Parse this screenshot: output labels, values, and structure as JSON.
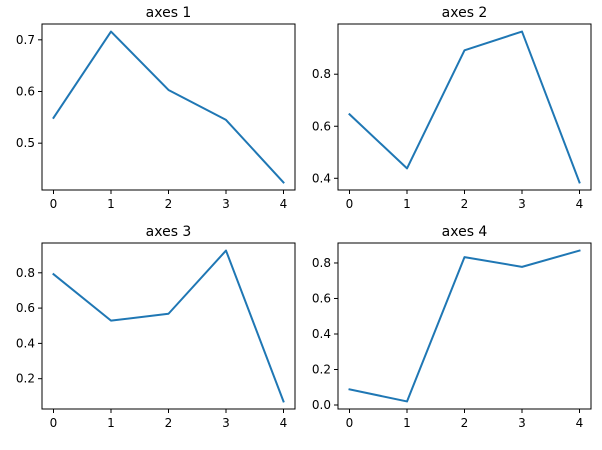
{
  "chart_data": [
    {
      "type": "line",
      "title": "axes 1",
      "x": [
        0,
        1,
        2,
        3,
        4
      ],
      "series": [
        {
          "values": [
            0.549,
            0.716,
            0.603,
            0.545,
            0.424
          ]
        }
      ],
      "xticks": [
        0,
        1,
        2,
        3,
        4
      ],
      "yticks": [
        0.5,
        0.6,
        0.7
      ],
      "xlim": [
        -0.2,
        4.2
      ],
      "ylim": [
        0.4094,
        0.7306
      ],
      "grid": false,
      "color": "#1f77b4"
    },
    {
      "type": "line",
      "title": "axes 2",
      "x": [
        0,
        1,
        2,
        3,
        4
      ],
      "series": [
        {
          "values": [
            0.646,
            0.438,
            0.892,
            0.964,
            0.384
          ]
        }
      ],
      "xticks": [
        0,
        1,
        2,
        3,
        4
      ],
      "yticks": [
        0.4,
        0.6,
        0.8
      ],
      "xlim": [
        -0.2,
        4.2
      ],
      "ylim": [
        0.355,
        0.993
      ],
      "grid": false,
      "color": "#1f77b4"
    },
    {
      "type": "line",
      "title": "axes 3",
      "x": [
        0,
        1,
        2,
        3,
        4
      ],
      "series": [
        {
          "values": [
            0.792,
            0.529,
            0.568,
            0.926,
            0.071
          ]
        }
      ],
      "xticks": [
        0,
        1,
        2,
        3,
        4
      ],
      "yticks": [
        0.2,
        0.4,
        0.6,
        0.8
      ],
      "xlim": [
        -0.2,
        4.2
      ],
      "ylim": [
        0.0283,
        0.9688
      ],
      "grid": false,
      "color": "#1f77b4"
    },
    {
      "type": "line",
      "title": "axes 4",
      "x": [
        0,
        1,
        2,
        3,
        4
      ],
      "series": [
        {
          "values": [
            0.088,
            0.02,
            0.833,
            0.778,
            0.87
          ]
        }
      ],
      "xticks": [
        0,
        1,
        2,
        3,
        4
      ],
      "yticks": [
        0.0,
        0.2,
        0.4,
        0.6,
        0.8
      ],
      "xlim": [
        -0.2,
        4.2
      ],
      "ylim": [
        -0.0225,
        0.9125
      ],
      "grid": false,
      "color": "#1f77b4"
    }
  ]
}
